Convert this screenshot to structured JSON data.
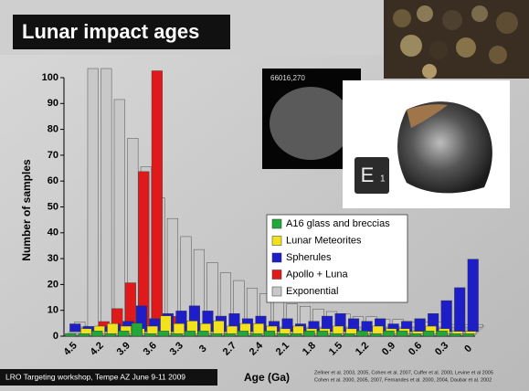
{
  "chart_data": {
    "type": "bar",
    "title": "Lunar impact ages",
    "xlabel": "Age (Ga)",
    "ylabel": "Number of samples",
    "categories": [
      "4.5",
      null,
      "4.2",
      null,
      "3.9",
      null,
      "3.6",
      null,
      "3.3",
      null,
      "3",
      null,
      "2.7",
      null,
      "2.4",
      null,
      "2.1",
      null,
      "1.8",
      null,
      "1.5",
      null,
      "1.2",
      null,
      "0.9",
      null,
      "0.6",
      null,
      "0.3",
      null,
      "0"
    ],
    "series": [
      {
        "name": "A16 glass and breccias",
        "color": "#22a83a",
        "values": [
          1,
          1,
          2,
          1,
          2,
          5,
          1,
          2,
          1,
          2,
          2,
          1,
          1,
          2,
          1,
          2,
          1,
          1,
          2,
          2,
          1,
          1,
          2,
          1,
          2,
          2,
          1,
          2,
          2,
          1,
          1
        ]
      },
      {
        "name": "Lunar Meteorites",
        "color": "#f2e21c",
        "values": [
          0,
          2,
          3,
          4,
          3,
          2,
          3,
          7,
          4,
          5,
          4,
          5,
          3,
          4,
          4,
          3,
          2,
          3,
          2,
          2,
          3,
          2,
          1,
          3,
          2,
          2,
          1,
          3,
          2,
          1,
          1
        ]
      },
      {
        "name": "Spherules",
        "color": "#1e1ec8",
        "values": [
          3,
          2,
          2,
          3,
          4,
          10,
          5,
          7,
          8,
          10,
          8,
          6,
          7,
          5,
          6,
          4,
          5,
          3,
          4,
          6,
          7,
          5,
          4,
          5,
          3,
          4,
          5,
          7,
          12,
          17,
          28
        ]
      },
      {
        "name": "Apollo + Luna",
        "color": "#e01a1a",
        "values": [
          0,
          0,
          3,
          8,
          18,
          61,
          100,
          5,
          0,
          0,
          0,
          0,
          0,
          0,
          0,
          0,
          0,
          0,
          0,
          0,
          0,
          0,
          0,
          0,
          0,
          0,
          0,
          0,
          0,
          0,
          0
        ]
      },
      {
        "name": "Exponential",
        "color": "#c8c8c8",
        "values": [
          2,
          100,
          100,
          88,
          73,
          62,
          50,
          42,
          35,
          30,
          25,
          21,
          18,
          15,
          13,
          11,
          9,
          8,
          7,
          6,
          5,
          4,
          4,
          3,
          3,
          2,
          2,
          2,
          1,
          1,
          1
        ]
      }
    ],
    "ylim": [
      0,
      100
    ],
    "yticks": [
      0,
      10,
      20,
      30,
      40,
      50,
      60,
      70,
      80,
      90,
      100
    ],
    "grid": false
  },
  "footer": "LRO Targeting workshop, Tempe AZ June 9-11 2009",
  "citations": [
    "Zellner et al. 2003, 2005, Cohen et al. 2007, Cuffer et al. 2000, Levine et al 2005",
    "Cohen et al. 2000, 2005, 2007, Fernandes et al. 2000, 2004, Daubar et al. 2002"
  ],
  "images": {
    "thin_section_label": "66016,270",
    "cube_letter": "E",
    "cube_number": "1"
  }
}
